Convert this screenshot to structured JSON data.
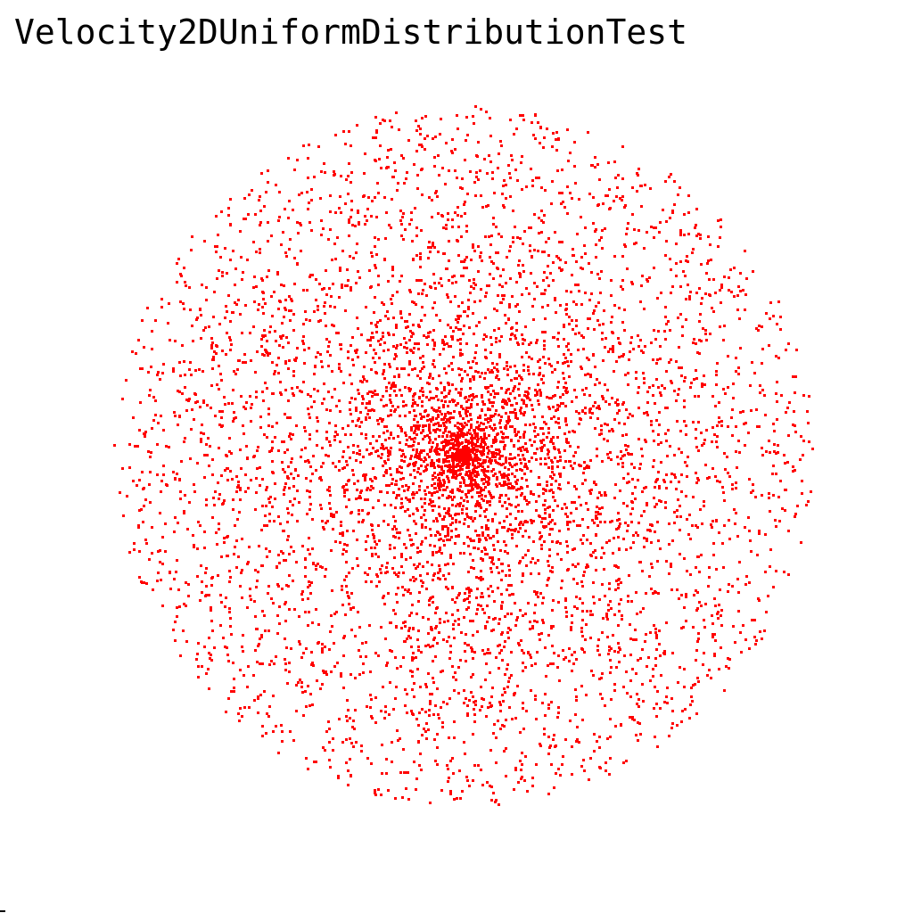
{
  "window": {
    "title": "Velocity2DUniformDistributionTest"
  },
  "chart_data": {
    "type": "scatter",
    "title": "Velocity2DUniformDistributionTest",
    "series": [
      {
        "color": "#ff0000",
        "distribution": "uniform-2d-velocity",
        "point_count": 6000,
        "seed": 12345
      }
    ],
    "grid": false,
    "legend": "none"
  },
  "colors": {
    "background": "#ffffff",
    "points": "#ff0000",
    "text": "#000000"
  }
}
